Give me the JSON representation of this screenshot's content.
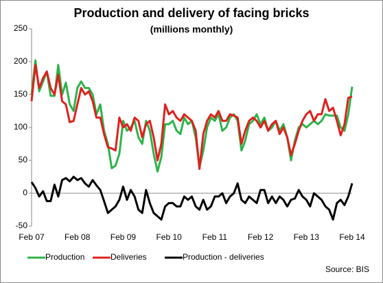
{
  "chart_data": {
    "type": "line",
    "title": "Production and delivery of facing bricks",
    "subtitle": "(millions monthly)",
    "source": "Source: BIS",
    "categories": [
      "Feb 07",
      null,
      null,
      null,
      null,
      null,
      null,
      null,
      null,
      null,
      null,
      null,
      "Feb 08",
      null,
      null,
      null,
      null,
      null,
      null,
      null,
      null,
      null,
      null,
      null,
      "Feb 09",
      null,
      null,
      null,
      null,
      null,
      null,
      null,
      null,
      null,
      null,
      null,
      "Feb 10",
      null,
      null,
      null,
      null,
      null,
      null,
      null,
      null,
      null,
      null,
      null,
      "Feb 11",
      null,
      null,
      null,
      null,
      null,
      null,
      null,
      null,
      null,
      null,
      null,
      "Feb 12",
      null,
      null,
      null,
      null,
      null,
      null,
      null,
      null,
      null,
      null,
      null,
      "Feb 13",
      null,
      null,
      null,
      null,
      null,
      null,
      null,
      null,
      null,
      null,
      null,
      "Feb 14"
    ],
    "series": [
      {
        "name": "Production",
        "color": "#2db34a",
        "values": [
          150,
          202,
          155,
          170,
          185,
          148,
          148,
          195,
          150,
          168,
          135,
          125,
          160,
          170,
          160,
          160,
          150,
          120,
          135,
          95,
          75,
          38,
          42,
          60,
          110,
          95,
          100,
          110,
          85,
          75,
          110,
          95,
          60,
          33,
          55,
          105,
          105,
          110,
          95,
          90,
          115,
          105,
          110,
          85,
          40,
          65,
          100,
          115,
          110,
          120,
          95,
          100,
          115,
          120,
          110,
          65,
          80,
          105,
          110,
          120,
          105,
          115,
          95,
          100,
          110,
          95,
          105,
          85,
          50,
          80,
          100,
          105,
          100,
          105,
          110,
          105,
          110,
          120,
          118,
          118,
          118,
          100,
          95,
          120,
          162
        ]
      },
      {
        "name": "Deliveries",
        "color": "#e0201b",
        "values": [
          140,
          195,
          160,
          175,
          185,
          160,
          150,
          180,
          140,
          135,
          108,
          110,
          135,
          160,
          150,
          155,
          140,
          115,
          115,
          90,
          70,
          68,
          65,
          115,
          100,
          105,
          95,
          115,
          110,
          85,
          105,
          110,
          85,
          50,
          75,
          135,
          120,
          125,
          115,
          110,
          120,
          115,
          110,
          95,
          37,
          90,
          110,
          120,
          115,
          125,
          110,
          110,
          120,
          118,
          115,
          75,
          95,
          110,
          115,
          110,
          100,
          110,
          95,
          105,
          110,
          90,
          100,
          85,
          58,
          75,
          95,
          110,
          120,
          125,
          110,
          120,
          120,
          143,
          125,
          130,
          110,
          88,
          105,
          145,
          147
        ]
      },
      {
        "name": "Production - deliveries",
        "color": "#000000",
        "values": [
          17,
          8,
          -5,
          3,
          -12,
          -12,
          13,
          -5,
          20,
          23,
          18,
          25,
          20,
          23,
          15,
          10,
          20,
          12,
          5,
          -12,
          -30,
          -25,
          -20,
          -10,
          10,
          -10,
          5,
          -5,
          -25,
          -30,
          5,
          -15,
          -30,
          -35,
          -40,
          -20,
          -15,
          -15,
          -20,
          -20,
          -5,
          -10,
          -5,
          -20,
          -25,
          -10,
          -25,
          -20,
          -5,
          -5,
          0,
          -15,
          -5,
          0,
          15,
          -10,
          -15,
          -5,
          -10,
          -15,
          5,
          5,
          -15,
          -5,
          -15,
          -5,
          -10,
          -20,
          -10,
          -8,
          5,
          -5,
          -10,
          -20,
          0,
          -5,
          -10,
          -20,
          -25,
          -40,
          -15,
          -10,
          -18,
          -5,
          15
        ]
      }
    ],
    "ylim": [
      -50,
      250
    ],
    "yticks": [
      -50,
      0,
      50,
      100,
      150,
      200,
      250
    ],
    "grid": false,
    "legend": "bottom"
  }
}
